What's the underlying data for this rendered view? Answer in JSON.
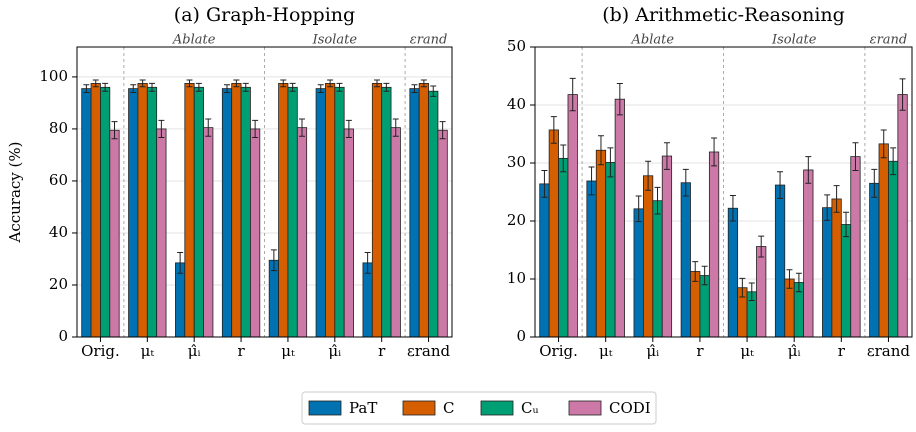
{
  "chart_data": [
    {
      "type": "bar",
      "title": "(a) Graph-Hopping",
      "ylabel": "Accuracy (%)",
      "categories": [
        "Orig.",
        "μₜ",
        "μ̂ᵢ",
        "r",
        "μₜ",
        "μ̂ᵢ",
        "r",
        "εrand"
      ],
      "group_labels": [
        "Ablate",
        "Isolate",
        "εrand"
      ],
      "ylim": [
        0,
        111.5
      ],
      "yticks": [
        0,
        20,
        40,
        60,
        80,
        100
      ],
      "grid": true,
      "series": [
        {
          "name": "PaT",
          "color": "#0072b2",
          "values": [
            95.5,
            95.5,
            28.5,
            95.5,
            29.5,
            95.5,
            28.5,
            95.5
          ],
          "errors": [
            1.5,
            1.5,
            4,
            1.5,
            4,
            1.5,
            4,
            1.5
          ]
        },
        {
          "name": "C",
          "color": "#d55e00",
          "values": [
            97.5,
            97.5,
            97.5,
            97.5,
            97.5,
            97.5,
            97.5,
            97.5
          ],
          "errors": [
            1.3,
            1.3,
            1.3,
            1.3,
            1.3,
            1.3,
            1.3,
            1.3
          ]
        },
        {
          "name": "Cᵤ",
          "color": "#009e73",
          "values": [
            96,
            96,
            96,
            96,
            96,
            96,
            96,
            94.5
          ],
          "errors": [
            1.5,
            1.5,
            1.5,
            1.5,
            1.5,
            1.5,
            1.5,
            2
          ]
        },
        {
          "name": "CODI",
          "color": "#cc79a7",
          "values": [
            79.5,
            80,
            80.5,
            80,
            80.5,
            80,
            80.5,
            79.5
          ],
          "errors": [
            3.3,
            3.3,
            3.3,
            3.3,
            3.3,
            3.3,
            3.3,
            3.3
          ]
        }
      ]
    },
    {
      "type": "bar",
      "title": "(b) Arithmetic-Reasoning",
      "categories": [
        "Orig.",
        "μₜ",
        "μ̂ᵢ",
        "r",
        "μₜ",
        "μ̂ᵢ",
        "r",
        "εrand"
      ],
      "group_labels": [
        "Ablate",
        "Isolate",
        "εrand"
      ],
      "ylim": [
        0,
        50
      ],
      "yticks": [
        0,
        10,
        20,
        30,
        40,
        50
      ],
      "grid": true,
      "series": [
        {
          "name": "PaT",
          "color": "#0072b2",
          "values": [
            26.4,
            26.9,
            22.1,
            26.6,
            22.2,
            26.2,
            22.3,
            26.5
          ],
          "errors": [
            2.3,
            2.4,
            2.2,
            2.3,
            2.2,
            2.3,
            2.2,
            2.4
          ]
        },
        {
          "name": "C",
          "color": "#d55e00",
          "values": [
            35.7,
            32.2,
            27.8,
            11.3,
            8.5,
            10.0,
            23.8,
            33.3
          ],
          "errors": [
            2.3,
            2.5,
            2.5,
            1.7,
            1.6,
            1.6,
            2.3,
            2.4
          ]
        },
        {
          "name": "Cᵤ",
          "color": "#009e73",
          "values": [
            30.8,
            30.1,
            23.5,
            10.6,
            7.8,
            9.4,
            19.4,
            30.3
          ],
          "errors": [
            2.3,
            2.5,
            2.3,
            1.6,
            1.5,
            1.6,
            2.1,
            2.3
          ]
        },
        {
          "name": "CODI",
          "color": "#cc79a7",
          "values": [
            41.8,
            41.0,
            31.2,
            31.9,
            15.6,
            28.8,
            31.1,
            41.8
          ],
          "errors": [
            2.8,
            2.7,
            2.3,
            2.4,
            1.8,
            2.3,
            2.4,
            2.7
          ]
        }
      ]
    }
  ]
}
